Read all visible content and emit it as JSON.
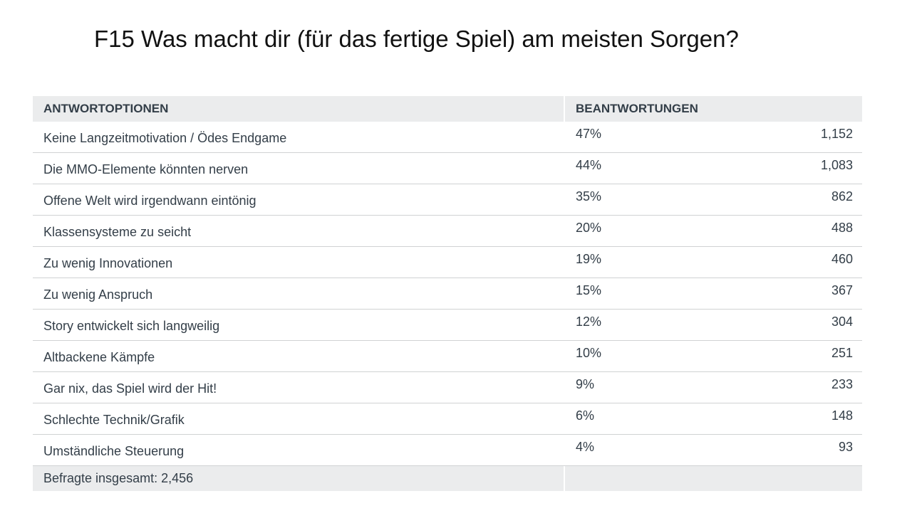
{
  "title": "F15 Was macht dir (für das fertige Spiel) am meisten Sorgen?",
  "table": {
    "headers": [
      "ANTWORTOPTIONEN",
      "BEANTWORTUNGEN"
    ],
    "rows": [
      [
        "Keine Langzeitmotivation / Ödes Endgame",
        "47%",
        "1,152"
      ],
      [
        "Die MMO-Elemente könnten nerven",
        "44%",
        "1,083"
      ],
      [
        "Offene Welt wird irgendwann eintönig",
        "35%",
        "862"
      ],
      [
        "Klassensysteme zu seicht",
        "20%",
        "488"
      ],
      [
        "Zu wenig Innovationen",
        "19%",
        "460"
      ],
      [
        "Zu wenig Anspruch",
        "15%",
        "367"
      ],
      [
        "Story entwickelt sich langweilig",
        "12%",
        "304"
      ],
      [
        "Altbackene Kämpfe",
        "10%",
        "251"
      ],
      [
        "Gar nix, das Spiel wird der Hit!",
        "9%",
        "233"
      ],
      [
        "Schlechte Technik/Grafik",
        "6%",
        "148"
      ],
      [
        "Umständliche Steuerung",
        "4%",
        "93"
      ]
    ],
    "footer": "Befragte insgesamt: 2,456"
  }
}
